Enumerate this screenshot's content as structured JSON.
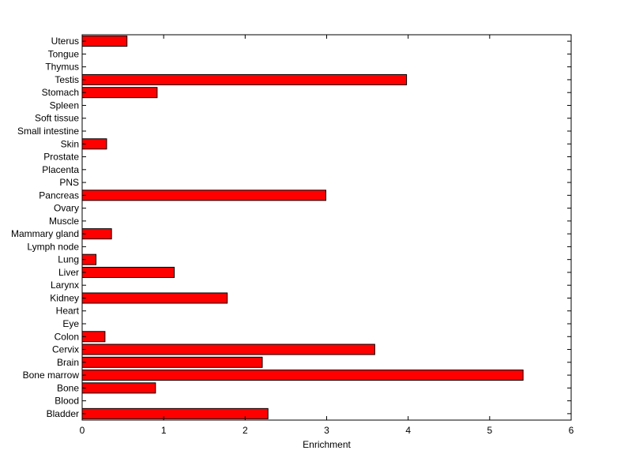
{
  "chart_data": {
    "type": "bar",
    "orientation": "horizontal",
    "title": "",
    "xlabel": "Enrichment",
    "ylabel": "",
    "xlim": [
      0,
      6
    ],
    "xticks": [
      0,
      1,
      2,
      3,
      4,
      5,
      6
    ],
    "grid": false,
    "legend": "none",
    "bar_color": "#ff0000",
    "bar_edge_color": "#000000",
    "categories": [
      "Bladder",
      "Blood",
      "Bone",
      "Bone marrow",
      "Brain",
      "Cervix",
      "Colon",
      "Eye",
      "Heart",
      "Kidney",
      "Larynx",
      "Liver",
      "Lung",
      "Lymph node",
      "Mammary gland",
      "Muscle",
      "Ovary",
      "Pancreas",
      "PNS",
      "Placenta",
      "Prostate",
      "Skin",
      "Small intestine",
      "Soft tissue",
      "Spleen",
      "Stomach",
      "Testis",
      "Thymus",
      "Tongue",
      "Uterus"
    ],
    "values": [
      2.28,
      0,
      0.9,
      5.41,
      2.21,
      3.59,
      0.28,
      0,
      0,
      1.78,
      0,
      1.13,
      0.17,
      0,
      0.36,
      0,
      0,
      2.99,
      0,
      0,
      0,
      0.3,
      0,
      0,
      0,
      0.92,
      3.98,
      0,
      0,
      0.55
    ]
  }
}
